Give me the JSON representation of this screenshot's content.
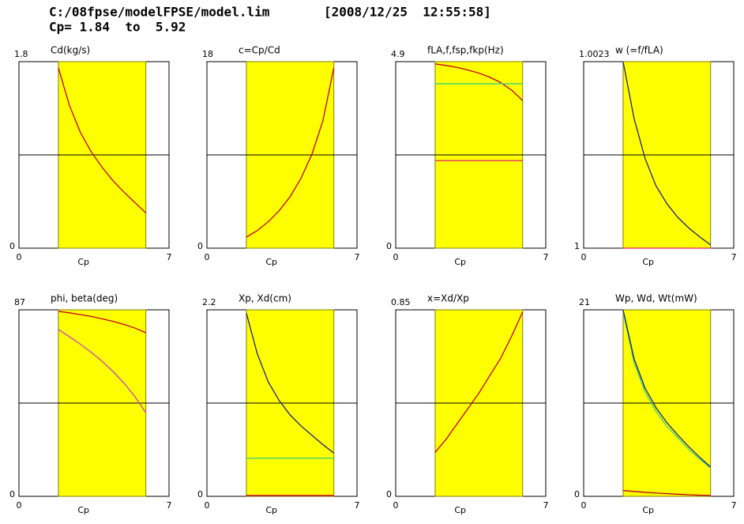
{
  "header": {
    "file": "C:/08fpse/modelFPSE/model.lim",
    "timestamp": "[2008/12/25  12:55:58]",
    "range": "Cp= 1.84  to  5.92"
  },
  "chart_data": [
    {
      "type": "line",
      "title": "Cd(kg/s)",
      "xlabel": "Cp",
      "xlim": [
        0,
        7
      ],
      "xticks": [
        0,
        7
      ],
      "ylim": [
        0,
        1.8
      ],
      "yticks": [
        0,
        1.8
      ],
      "band": [
        1.84,
        5.92
      ],
      "x": [
        1.84,
        2.35,
        2.86,
        3.37,
        3.88,
        4.39,
        4.9,
        5.41,
        5.92
      ],
      "series": [
        {
          "color": "#c0001c",
          "values": [
            1.74,
            1.38,
            1.12,
            0.93,
            0.78,
            0.65,
            0.54,
            0.44,
            0.34
          ]
        }
      ]
    },
    {
      "type": "line",
      "title": "c=Cp/Cd",
      "xlabel": "Cp",
      "xlim": [
        0,
        7
      ],
      "xticks": [
        0,
        7
      ],
      "ylim": [
        0,
        18
      ],
      "yticks": [
        0,
        18
      ],
      "band": [
        1.84,
        5.92
      ],
      "x": [
        1.84,
        2.35,
        2.86,
        3.37,
        3.88,
        4.39,
        4.9,
        5.41,
        5.92
      ],
      "series": [
        {
          "color": "#c0001c",
          "values": [
            1.06,
            1.7,
            2.55,
            3.62,
            4.97,
            6.75,
            9.07,
            12.3,
            17.4
          ]
        }
      ]
    },
    {
      "type": "line",
      "title": "fLA,f,fsp,fkp(Hz)",
      "xlabel": "Cp",
      "xlim": [
        0,
        7
      ],
      "xticks": [
        0,
        7
      ],
      "ylim": [
        0,
        4.9
      ],
      "yticks": [
        0,
        4.9
      ],
      "band": [
        1.84,
        5.92
      ],
      "x": [
        1.84,
        2.35,
        2.86,
        3.37,
        3.88,
        4.39,
        4.9,
        5.41,
        5.92
      ],
      "series": [
        {
          "color": "#c0001c",
          "values": [
            4.84,
            4.8,
            4.75,
            4.68,
            4.6,
            4.49,
            4.35,
            4.15,
            3.88
          ]
        },
        {
          "color": "#30d080",
          "values": [
            4.32,
            4.32,
            4.32,
            4.32,
            4.32,
            4.32,
            4.32,
            4.32,
            4.32
          ]
        },
        {
          "color": "#e0206a",
          "values": [
            2.3,
            2.3,
            2.3,
            2.3,
            2.3,
            2.3,
            2.3,
            2.3,
            2.3
          ]
        }
      ]
    },
    {
      "type": "line",
      "title": "w (=f/fLA)",
      "xlabel": "Cp",
      "xlim": [
        0,
        7
      ],
      "xticks": [
        0,
        7
      ],
      "ylim": [
        1,
        1.0023
      ],
      "yticks": [
        1,
        1.0023
      ],
      "band": [
        1.84,
        5.92
      ],
      "x": [
        1.84,
        2.35,
        2.86,
        3.37,
        3.88,
        4.39,
        4.9,
        5.41,
        5.92
      ],
      "series": [
        {
          "color": "#202080",
          "values": [
            1.0023,
            1.0016,
            1.00111,
            1.00077,
            1.00055,
            1.00038,
            1.00025,
            1.00014,
            1.00004
          ]
        },
        {
          "color": "#e0206a",
          "values": [
            1,
            1,
            1,
            1,
            1,
            1,
            1,
            1,
            1
          ]
        }
      ]
    },
    {
      "type": "line",
      "title": "phi, beta(deg)",
      "xlabel": "Cp",
      "xlim": [
        0,
        7
      ],
      "xticks": [
        0,
        7
      ],
      "ylim": [
        0,
        87
      ],
      "yticks": [
        0,
        87
      ],
      "band": [
        1.84,
        5.92
      ],
      "x": [
        1.84,
        2.35,
        2.86,
        3.37,
        3.88,
        4.39,
        4.9,
        5.41,
        5.92
      ],
      "series": [
        {
          "color": "#c0001c",
          "values": [
            86.3,
            85.6,
            84.8,
            83.9,
            82.8,
            81.6,
            80.2,
            78.5,
            76.3
          ]
        },
        {
          "color": "#d040c0",
          "values": [
            77.8,
            74.5,
            71,
            67.2,
            63,
            58.2,
            52.8,
            46.5,
            39
          ]
        }
      ]
    },
    {
      "type": "line",
      "title": "Xp, Xd(cm)",
      "xlabel": "Cp",
      "xlim": [
        0,
        7
      ],
      "xticks": [
        0,
        7
      ],
      "ylim": [
        0,
        2.2
      ],
      "yticks": [
        0,
        2.2
      ],
      "band": [
        1.84,
        5.92
      ],
      "x": [
        1.84,
        2.35,
        2.86,
        3.37,
        3.88,
        4.39,
        4.9,
        5.41,
        5.92
      ],
      "series": [
        {
          "color": "#202080",
          "values": [
            2.16,
            1.68,
            1.35,
            1.13,
            0.96,
            0.83,
            0.72,
            0.61,
            0.51
          ]
        },
        {
          "color": "#30d080",
          "values": [
            0.45,
            0.45,
            0.45,
            0.45,
            0.45,
            0.45,
            0.45,
            0.45,
            0.45
          ]
        },
        {
          "color": "#c0001c",
          "values": [
            0.01,
            0.01,
            0.01,
            0.01,
            0.01,
            0.01,
            0.01,
            0.01,
            0.01
          ]
        }
      ]
    },
    {
      "type": "line",
      "title": "x=Xd/Xp",
      "xlabel": "Cp",
      "xlim": [
        0,
        7
      ],
      "xticks": [
        0,
        7
      ],
      "ylim": [
        0,
        0.85
      ],
      "yticks": [
        0,
        0.85
      ],
      "band": [
        1.84,
        5.92
      ],
      "x": [
        1.84,
        2.35,
        2.86,
        3.37,
        3.88,
        4.39,
        4.9,
        5.41,
        5.92
      ],
      "series": [
        {
          "color": "#c0001c",
          "values": [
            0.2,
            0.26,
            0.33,
            0.4,
            0.47,
            0.55,
            0.63,
            0.73,
            0.84
          ]
        }
      ]
    },
    {
      "type": "line",
      "title": "Wp, Wd, Wt(mW)",
      "xlabel": "Cp",
      "xlim": [
        0,
        7
      ],
      "xticks": [
        0,
        7
      ],
      "ylim": [
        0,
        21
      ],
      "yticks": [
        0,
        21
      ],
      "band": [
        1.84,
        5.92
      ],
      "x": [
        1.84,
        2.35,
        2.86,
        3.37,
        3.88,
        4.39,
        4.9,
        5.41,
        5.92
      ],
      "series": [
        {
          "color": "#30d080",
          "values": [
            20.8,
            15.1,
            11.8,
            9.6,
            7.9,
            6.6,
            5.3,
            4.2,
            3.2
          ]
        },
        {
          "color": "#202080",
          "values": [
            21,
            15.5,
            12.2,
            10,
            8.3,
            6.9,
            5.6,
            4.4,
            3.3
          ]
        },
        {
          "color": "#c0001c",
          "values": [
            0.65,
            0.55,
            0.45,
            0.38,
            0.3,
            0.24,
            0.18,
            0.13,
            0.1
          ]
        }
      ]
    }
  ]
}
